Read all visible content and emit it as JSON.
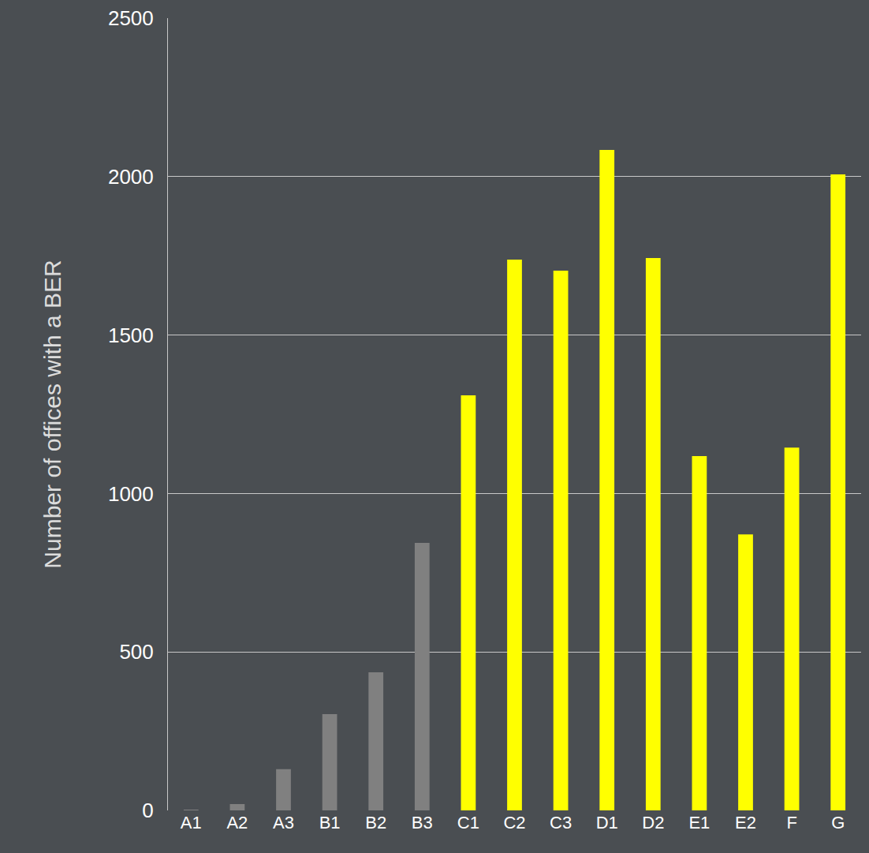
{
  "chart_data": {
    "type": "bar",
    "y_label": "Number of offices with a BER",
    "categories": [
      "A1",
      "A2",
      "A3",
      "B1",
      "B2",
      "B3",
      "C1",
      "C2",
      "C3",
      "D1",
      "D2",
      "E1",
      "E2",
      "F",
      "G"
    ],
    "values": [
      2,
      20,
      130,
      304,
      436,
      844,
      1310,
      1738,
      1703,
      2084,
      1743,
      1118,
      871,
      1145,
      2007
    ],
    "colors": [
      "#808080",
      "#808080",
      "#808080",
      "#808080",
      "#808080",
      "#808080",
      "#ffff00",
      "#ffff00",
      "#ffff00",
      "#ffff00",
      "#ffff00",
      "#ffff00",
      "#ffff00",
      "#ffff00",
      "#ffff00"
    ],
    "ylim": [
      0,
      2500
    ],
    "yticks": [
      0,
      500,
      1000,
      1500,
      2000,
      2500
    ],
    "grid": true
  }
}
